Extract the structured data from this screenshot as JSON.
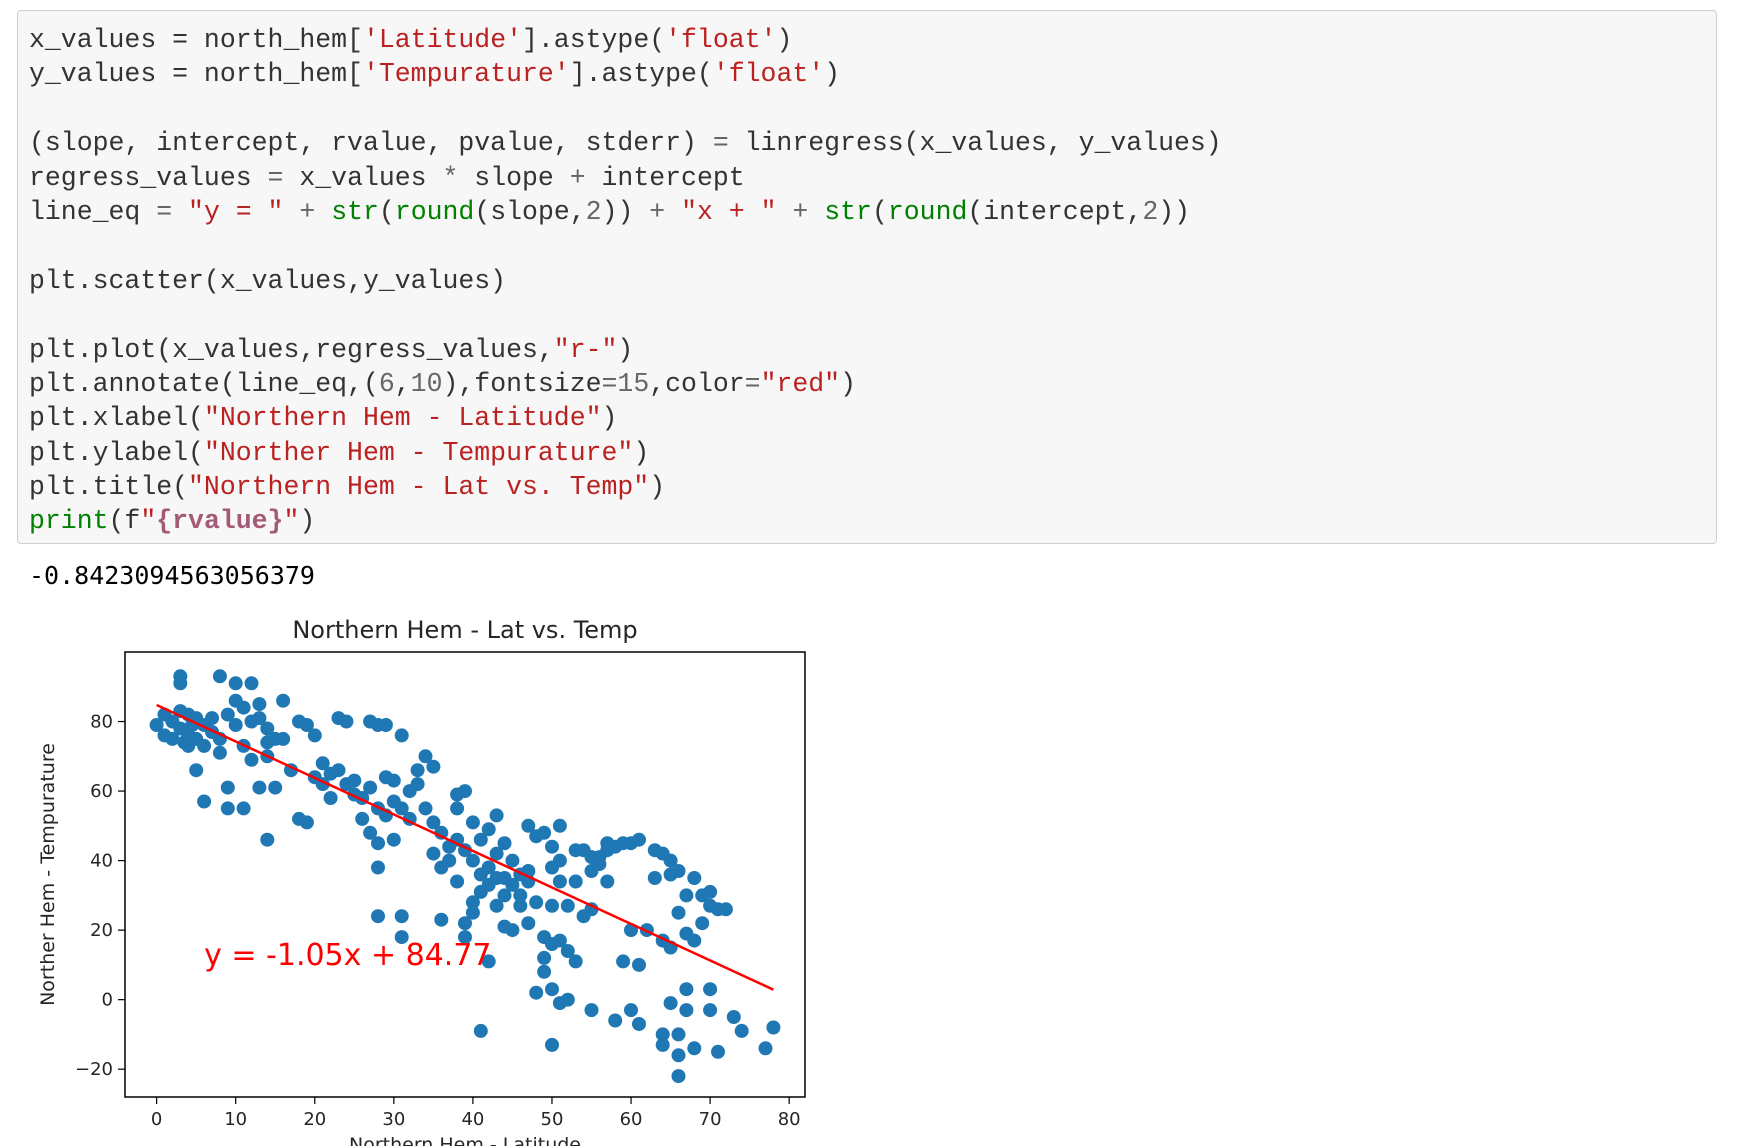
{
  "code_cell": {
    "lines": [
      [
        {
          "t": "x_values = north_hem["
        },
        {
          "t": "'Latitude'",
          "c": "str"
        },
        {
          "t": "].astype("
        },
        {
          "t": "'float'",
          "c": "str"
        },
        {
          "t": ")"
        }
      ],
      [
        {
          "t": "y_values = north_hem["
        },
        {
          "t": "'Tempurature'",
          "c": "str"
        },
        {
          "t": "].astype("
        },
        {
          "t": "'float'",
          "c": "str"
        },
        {
          "t": ")"
        }
      ],
      [],
      [
        {
          "t": "(slope, intercept, rvalue, pvalue, stderr) "
        },
        {
          "t": "=",
          "c": "op"
        },
        {
          "t": " linregress(x_values, y_values)"
        }
      ],
      [
        {
          "t": "regress_values "
        },
        {
          "t": "=",
          "c": "op"
        },
        {
          "t": " x_values "
        },
        {
          "t": "*",
          "c": "op"
        },
        {
          "t": " slope "
        },
        {
          "t": "+",
          "c": "op"
        },
        {
          "t": " intercept"
        }
      ],
      [
        {
          "t": "line_eq "
        },
        {
          "t": "=",
          "c": "op"
        },
        {
          "t": " "
        },
        {
          "t": "\"y = \"",
          "c": "str"
        },
        {
          "t": " "
        },
        {
          "t": "+",
          "c": "op"
        },
        {
          "t": " "
        },
        {
          "t": "str",
          "c": "bi"
        },
        {
          "t": "("
        },
        {
          "t": "round",
          "c": "bi"
        },
        {
          "t": "(slope,"
        },
        {
          "t": "2",
          "c": "num"
        },
        {
          "t": ")) "
        },
        {
          "t": "+",
          "c": "op"
        },
        {
          "t": " "
        },
        {
          "t": "\"x + \"",
          "c": "str"
        },
        {
          "t": " "
        },
        {
          "t": "+",
          "c": "op"
        },
        {
          "t": " "
        },
        {
          "t": "str",
          "c": "bi"
        },
        {
          "t": "("
        },
        {
          "t": "round",
          "c": "bi"
        },
        {
          "t": "(intercept,"
        },
        {
          "t": "2",
          "c": "num"
        },
        {
          "t": "))"
        }
      ],
      [],
      [
        {
          "t": "plt.scatter(x_values,y_values)"
        }
      ],
      [],
      [
        {
          "t": "plt.plot(x_values,regress_values,"
        },
        {
          "t": "\"r-\"",
          "c": "str"
        },
        {
          "t": ")"
        }
      ],
      [
        {
          "t": "plt.annotate(line_eq,("
        },
        {
          "t": "6",
          "c": "num"
        },
        {
          "t": ","
        },
        {
          "t": "10",
          "c": "num"
        },
        {
          "t": "),fontsize"
        },
        {
          "t": "=",
          "c": "op"
        },
        {
          "t": "15",
          "c": "num"
        },
        {
          "t": ",color"
        },
        {
          "t": "=",
          "c": "op"
        },
        {
          "t": "\"red\"",
          "c": "str"
        },
        {
          "t": ")"
        }
      ],
      [
        {
          "t": "plt.xlabel("
        },
        {
          "t": "\"Northern Hem - Latitude\"",
          "c": "str"
        },
        {
          "t": ")"
        }
      ],
      [
        {
          "t": "plt.ylabel("
        },
        {
          "t": "\"Norther Hem - Tempurature\"",
          "c": "str"
        },
        {
          "t": ")"
        }
      ],
      [
        {
          "t": "plt.title("
        },
        {
          "t": "\"Northern Hem - Lat vs. Temp\"",
          "c": "str"
        },
        {
          "t": ")"
        }
      ],
      [
        {
          "t": "print",
          "c": "bi"
        },
        {
          "t": "(f"
        },
        {
          "t": "\"",
          "c": "str"
        },
        {
          "t": "{rvalue}",
          "c": "interp"
        },
        {
          "t": "\"",
          "c": "str"
        },
        {
          "t": ")"
        }
      ]
    ]
  },
  "output": {
    "text": "-0.8423094563056379"
  },
  "colors": {
    "code_bg": "#f7f7f7",
    "code_border": "#cfcfcf",
    "string": "#ba2121",
    "number": "#666666",
    "builtin": "#008000",
    "interp": "#a45a77",
    "scatter": "#1f77b4",
    "regression_line": "#ff0000",
    "annotation": "#ff0000"
  },
  "chart_data": {
    "type": "scatter",
    "title": "Northern Hem - Lat vs. Temp",
    "xlabel": "Northern Hem - Latitude",
    "ylabel": "Norther Hem - Tempurature",
    "xlim": [
      -4,
      82
    ],
    "ylim": [
      -28,
      100
    ],
    "xticks": [
      0,
      10,
      20,
      30,
      40,
      50,
      60,
      70,
      80
    ],
    "yticks": [
      -20,
      0,
      20,
      40,
      60,
      80
    ],
    "grid": false,
    "annotation": "y = -1.05x + 84.77",
    "annotation_at": [
      6,
      10
    ],
    "regression": {
      "slope": -1.05,
      "intercept": 84.77,
      "x_range": [
        0,
        78
      ]
    },
    "points": [
      [
        0,
        79
      ],
      [
        1,
        82
      ],
      [
        1,
        76
      ],
      [
        2,
        80
      ],
      [
        2,
        75
      ],
      [
        3,
        83
      ],
      [
        3,
        78
      ],
      [
        3,
        91
      ],
      [
        3,
        93
      ],
      [
        3.5,
        74
      ],
      [
        4,
        82
      ],
      [
        4,
        76
      ],
      [
        4,
        73
      ],
      [
        4.5,
        79
      ],
      [
        5,
        81
      ],
      [
        5,
        66
      ],
      [
        5,
        75
      ],
      [
        6,
        79
      ],
      [
        6,
        73
      ],
      [
        6,
        57
      ],
      [
        7,
        77
      ],
      [
        7,
        81
      ],
      [
        8,
        71
      ],
      [
        8,
        75
      ],
      [
        8,
        93
      ],
      [
        9,
        82
      ],
      [
        9,
        61
      ],
      [
        9,
        55
      ],
      [
        10,
        86
      ],
      [
        10,
        79
      ],
      [
        10,
        91
      ],
      [
        11,
        84
      ],
      [
        11,
        55
      ],
      [
        11,
        73
      ],
      [
        12,
        80
      ],
      [
        12,
        91
      ],
      [
        12,
        69
      ],
      [
        13,
        85
      ],
      [
        13,
        81
      ],
      [
        13,
        61
      ],
      [
        14,
        78
      ],
      [
        14,
        74
      ],
      [
        14,
        70
      ],
      [
        14,
        46
      ],
      [
        15,
        75
      ],
      [
        15,
        61
      ],
      [
        16,
        86
      ],
      [
        16,
        75
      ],
      [
        17,
        66
      ],
      [
        18,
        80
      ],
      [
        18,
        52
      ],
      [
        19,
        79
      ],
      [
        19,
        51
      ],
      [
        20,
        64
      ],
      [
        20,
        76
      ],
      [
        21,
        68
      ],
      [
        21,
        62
      ],
      [
        22,
        65
      ],
      [
        22,
        58
      ],
      [
        23,
        81
      ],
      [
        23,
        66
      ],
      [
        24,
        80
      ],
      [
        24,
        62
      ],
      [
        25,
        63
      ],
      [
        25,
        59
      ],
      [
        26,
        58
      ],
      [
        26,
        52
      ],
      [
        27,
        80
      ],
      [
        27,
        61
      ],
      [
        27,
        48
      ],
      [
        28,
        55
      ],
      [
        28,
        79
      ],
      [
        28,
        45
      ],
      [
        28,
        24
      ],
      [
        28,
        38
      ],
      [
        29,
        64
      ],
      [
        29,
        53
      ],
      [
        29,
        79
      ],
      [
        30,
        63
      ],
      [
        30,
        57
      ],
      [
        30,
        46
      ],
      [
        31,
        55
      ],
      [
        31,
        24
      ],
      [
        31,
        18
      ],
      [
        31,
        76
      ],
      [
        32,
        60
      ],
      [
        32,
        52
      ],
      [
        33,
        62
      ],
      [
        33,
        66
      ],
      [
        34,
        55
      ],
      [
        34,
        70
      ],
      [
        35,
        51
      ],
      [
        35,
        67
      ],
      [
        35,
        42
      ],
      [
        36,
        48
      ],
      [
        36,
        38
      ],
      [
        36,
        23
      ],
      [
        37,
        44
      ],
      [
        37,
        40
      ],
      [
        38,
        59
      ],
      [
        38,
        46
      ],
      [
        38,
        55
      ],
      [
        38,
        34
      ],
      [
        39,
        60
      ],
      [
        39,
        43
      ],
      [
        39,
        22
      ],
      [
        39,
        18
      ],
      [
        40,
        51
      ],
      [
        40,
        40
      ],
      [
        40,
        28
      ],
      [
        40,
        25
      ],
      [
        41,
        46
      ],
      [
        41,
        36
      ],
      [
        41,
        -9
      ],
      [
        41,
        31
      ],
      [
        42,
        49
      ],
      [
        42,
        38
      ],
      [
        42,
        33
      ],
      [
        42,
        11
      ],
      [
        43,
        53
      ],
      [
        43,
        42
      ],
      [
        43,
        35
      ],
      [
        43,
        27
      ],
      [
        44,
        45
      ],
      [
        44,
        35
      ],
      [
        44,
        30
      ],
      [
        44,
        21
      ],
      [
        45,
        40
      ],
      [
        45,
        33
      ],
      [
        45,
        20
      ],
      [
        46,
        36
      ],
      [
        46,
        30
      ],
      [
        46,
        27
      ],
      [
        47,
        50
      ],
      [
        47,
        37
      ],
      [
        47,
        34
      ],
      [
        47,
        22
      ],
      [
        48,
        47
      ],
      [
        48,
        28
      ],
      [
        48,
        2
      ],
      [
        49,
        48
      ],
      [
        49,
        18
      ],
      [
        49,
        12
      ],
      [
        49,
        8
      ],
      [
        50,
        44
      ],
      [
        50,
        38
      ],
      [
        50,
        27
      ],
      [
        50,
        16
      ],
      [
        50,
        3
      ],
      [
        50,
        -13
      ],
      [
        51,
        50
      ],
      [
        51,
        40
      ],
      [
        51,
        34
      ],
      [
        51,
        17
      ],
      [
        51,
        -1
      ],
      [
        52,
        27
      ],
      [
        52,
        14
      ],
      [
        52,
        0
      ],
      [
        53,
        43
      ],
      [
        53,
        34
      ],
      [
        53,
        11
      ],
      [
        54,
        43
      ],
      [
        54,
        24
      ],
      [
        55,
        41
      ],
      [
        55,
        37
      ],
      [
        55,
        26
      ],
      [
        55,
        -3
      ],
      [
        56,
        41
      ],
      [
        56,
        39
      ],
      [
        57,
        45
      ],
      [
        57,
        43
      ],
      [
        57,
        34
      ],
      [
        58,
        44
      ],
      [
        58,
        -6
      ],
      [
        59,
        45
      ],
      [
        59,
        11
      ],
      [
        60,
        45
      ],
      [
        60,
        20
      ],
      [
        60,
        -3
      ],
      [
        61,
        46
      ],
      [
        61,
        10
      ],
      [
        61,
        -7
      ],
      [
        62,
        20
      ],
      [
        63,
        43
      ],
      [
        63,
        35
      ],
      [
        64,
        42
      ],
      [
        64,
        17
      ],
      [
        64,
        -10
      ],
      [
        64,
        -13
      ],
      [
        65,
        40
      ],
      [
        65,
        36
      ],
      [
        65,
        15
      ],
      [
        65,
        -1
      ],
      [
        66,
        37
      ],
      [
        66,
        25
      ],
      [
        66,
        -10
      ],
      [
        66,
        -16
      ],
      [
        66,
        -22
      ],
      [
        67,
        30
      ],
      [
        67,
        19
      ],
      [
        67,
        3
      ],
      [
        67,
        -3
      ],
      [
        68,
        35
      ],
      [
        68,
        17
      ],
      [
        68,
        -14
      ],
      [
        69,
        30
      ],
      [
        69,
        22
      ],
      [
        70,
        31
      ],
      [
        70,
        27
      ],
      [
        70,
        3
      ],
      [
        70,
        -3
      ],
      [
        71,
        26
      ],
      [
        71,
        -15
      ],
      [
        72,
        26
      ],
      [
        73,
        -5
      ],
      [
        74,
        -9
      ],
      [
        77,
        -14
      ],
      [
        78,
        -8
      ]
    ]
  }
}
